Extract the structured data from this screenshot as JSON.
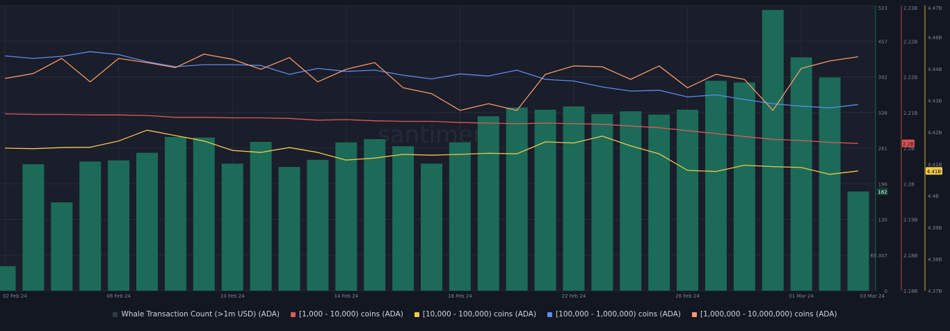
{
  "colors": {
    "background": "#131722",
    "plot_bg": "#1a1d2a",
    "grid": "#272b38",
    "tick_text": "#7d8290",
    "axis_green": "#1b6b58",
    "axis_red": "#b94a4a",
    "axis_yellow": "#d3b13c",
    "legend_text": "#d1d4dc"
  },
  "watermark": "santiment",
  "chart_data": {
    "type": "bar",
    "x": [
      "02 Feb 24",
      "03 Feb 24",
      "04 Feb 24",
      "05 Feb 24",
      "06 Feb 24",
      "07 Feb 24",
      "08 Feb 24",
      "09 Feb 24",
      "10 Feb 24",
      "11 Feb 24",
      "12 Feb 24",
      "13 Feb 24",
      "14 Feb 24",
      "15 Feb 24",
      "16 Feb 24",
      "17 Feb 24",
      "18 Feb 24",
      "19 Feb 24",
      "20 Feb 24",
      "21 Feb 24",
      "22 Feb 24",
      "23 Feb 24",
      "24 Feb 24",
      "25 Feb 24",
      "26 Feb 24",
      "27 Feb 24",
      "28 Feb 24",
      "29 Feb 24",
      "01 Mar 24",
      "02 Mar 24",
      "03 Mar 24"
    ],
    "x_tick_labels": [
      "02 Feb 24",
      "06 Feb 24",
      "10 Feb 24",
      "14 Feb 24",
      "18 Feb 24",
      "22 Feb 24",
      "26 Feb 24",
      "01 Mar 24",
      "03 Mar 24"
    ],
    "series": [
      {
        "name": "Whale Transaction Count (>1m USD) (ADA)",
        "type": "bar",
        "axis": "whale",
        "color": "#1b6b58",
        "values": [
          45,
          232,
          162,
          237,
          239,
          253,
          282,
          281,
          233,
          273,
          227,
          240,
          272,
          278,
          265,
          233,
          272,
          320,
          336,
          332,
          338,
          324,
          329,
          323,
          332,
          385,
          382,
          515,
          428,
          391,
          182
        ]
      },
      {
        "name": "[1,000 - 10,000) coins (ADA)",
        "type": "line",
        "axis": "red",
        "color": "#e05a5a",
        "values": [
          2.2124,
          2.2123,
          2.2123,
          2.2122,
          2.2122,
          2.2121,
          2.2118,
          2.2118,
          2.2117,
          2.2117,
          2.2116,
          2.2113,
          2.2114,
          2.2112,
          2.2111,
          2.2111,
          2.2109,
          2.2108,
          2.2107,
          2.2108,
          2.2107,
          2.2106,
          2.2103,
          2.21,
          2.2095,
          2.209,
          2.2085,
          2.208,
          2.2078,
          2.2075,
          2.2073
        ]
      },
      {
        "name": "[10,000 - 100,000) coins (ADA)",
        "type": "line",
        "axis": "yellow",
        "color": "#f2c94c",
        "values": [
          4.42,
          4.4198,
          4.4202,
          4.4203,
          4.4225,
          4.4263,
          4.4244,
          4.4225,
          4.4192,
          4.4185,
          4.4202,
          4.4185,
          4.4158,
          4.4165,
          4.4178,
          4.4175,
          4.4178,
          4.4182,
          4.418,
          4.4222,
          4.4218,
          4.4242,
          4.4208,
          4.418,
          4.4122,
          4.4118,
          4.414,
          4.4135,
          4.4132,
          4.4108,
          4.412
        ]
      },
      {
        "name": "[100,000 - 1,000,000) coins (ADA)",
        "type": "line",
        "axis": "blue",
        "color": "#5b8def",
        "values": [
          100,
          97,
          99.5,
          105,
          101.5,
          93,
          87,
          89.5,
          89.5,
          88.5,
          78,
          85,
          81.5,
          83,
          77,
          72.5,
          78.5,
          76,
          83,
          72,
          70,
          63,
          58,
          59,
          51,
          53.5,
          48,
          43,
          40,
          38,
          42
        ]
      },
      {
        "name": "[1,000,000 - 10,000,000) coins (ADA)",
        "type": "line",
        "axis": "blue",
        "color": "#f59a6b",
        "values": [
          73,
          79,
          97,
          69,
          97,
          92,
          86,
          102,
          96,
          84,
          98,
          69,
          84,
          92,
          62,
          55,
          35,
          43,
          35,
          78,
          88,
          87,
          72,
          88,
          62,
          78,
          72,
          35,
          85,
          94,
          99
        ]
      }
    ],
    "axes": {
      "whale": {
        "ticks": [
          "0",
          "65.307",
          "130",
          "196",
          "261",
          "326",
          "392",
          "457",
          "523"
        ],
        "ylim": [
          0,
          523
        ],
        "last_value": "182"
      },
      "red": {
        "ticks": [
          "2.18B",
          "2.18B",
          "2.19B",
          "2.2B",
          "2.2B",
          "2.21B",
          "2.22B",
          "2.22B",
          "2.23B"
        ],
        "ylim": [
          2.182,
          2.231
        ],
        "last_value": "2.2B"
      },
      "yellow": {
        "ticks": [
          "4.37B",
          "4.38B",
          "4.39B",
          "4.4B",
          "4.41B",
          "4.42B",
          "4.43B",
          "4.44B",
          "4.46B",
          "4.47B"
        ],
        "ylim": [
          4.37,
          4.47
        ],
        "last_value": "4.41B"
      },
      "blue": {
        "ylim": [
          -180,
          160
        ]
      }
    },
    "grid": true,
    "legend_position": "bottom"
  }
}
